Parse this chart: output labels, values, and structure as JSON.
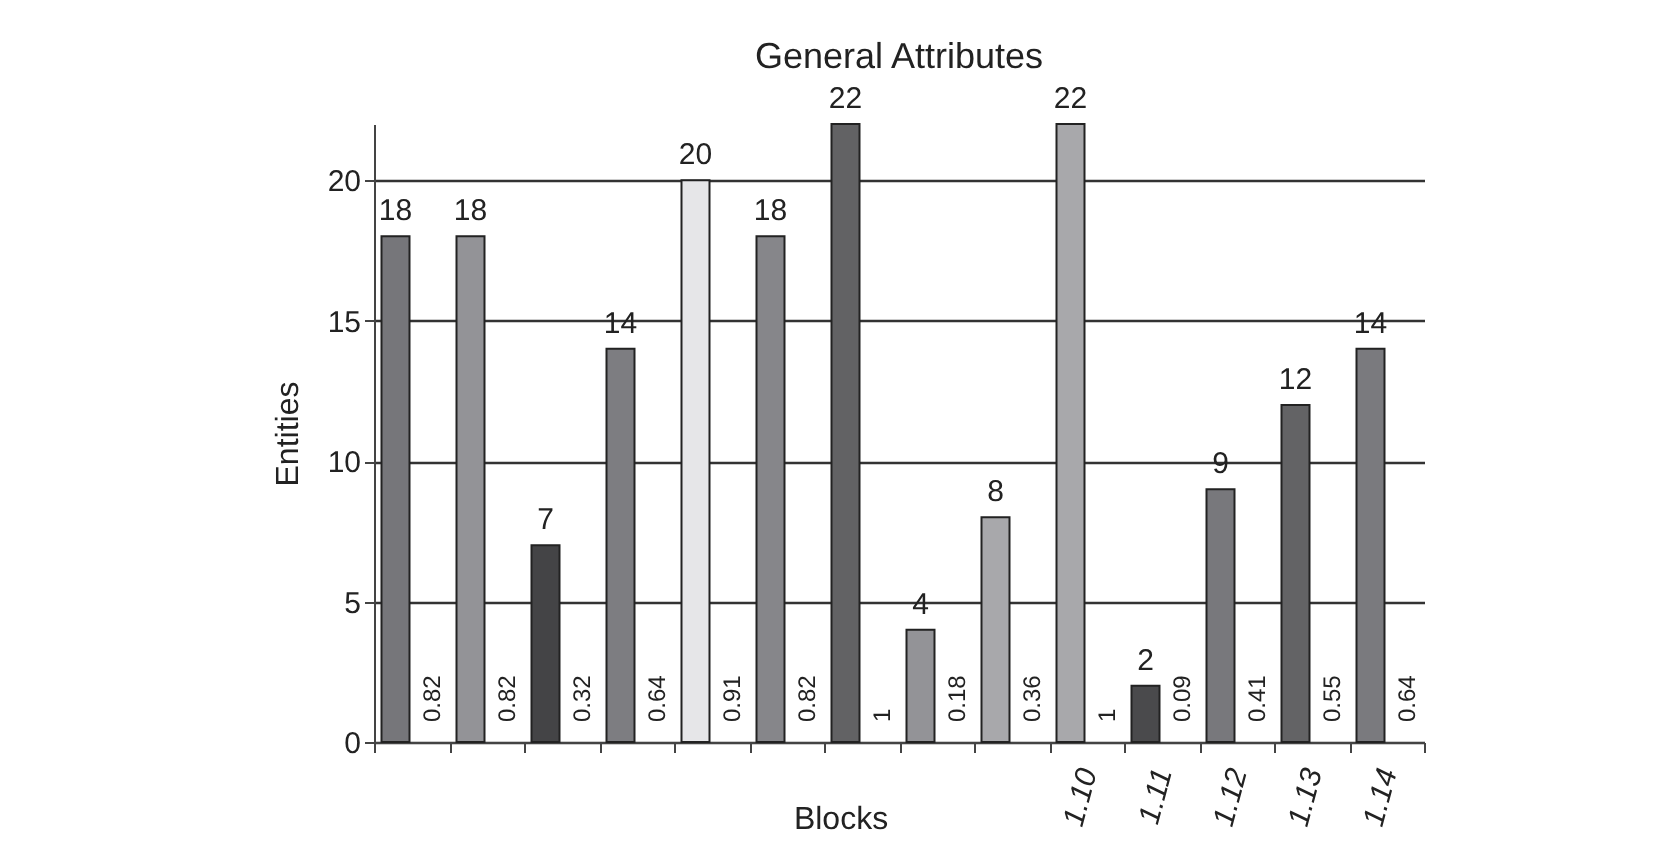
{
  "chart_data": {
    "type": "bar",
    "title": "General Attributes",
    "xlabel": "Blocks",
    "ylabel": "Entities",
    "categories": [
      null,
      null,
      null,
      null,
      null,
      null,
      null,
      null,
      null,
      "1.10",
      "1.11",
      "1.12",
      "1.13",
      "1.14"
    ],
    "values": [
      18,
      18,
      7,
      14,
      20,
      18,
      22,
      4,
      8,
      22,
      2,
      9,
      12,
      14
    ],
    "colors": [
      "#76767a",
      "#939397",
      "#444446",
      "#7d7d81",
      "#e6e6e8",
      "#86868a",
      "#626264",
      "#939397",
      "#a8a8ab",
      "#a8a8ab",
      "#4a4a4c",
      "#78787c",
      "#636365",
      "#7a7a7e"
    ],
    "data_labels": true,
    "annotations": [
      "0.82",
      "0.82",
      "0.32",
      "0.64",
      "0.91",
      "0.82",
      "1",
      "0.18",
      "0.36",
      "1",
      "0.09",
      "0.41",
      "0.55",
      "0.64"
    ],
    "ylim": [
      0,
      22
    ],
    "yticks": [
      0,
      5,
      10,
      15,
      20
    ],
    "grid": "y",
    "legend": false
  }
}
